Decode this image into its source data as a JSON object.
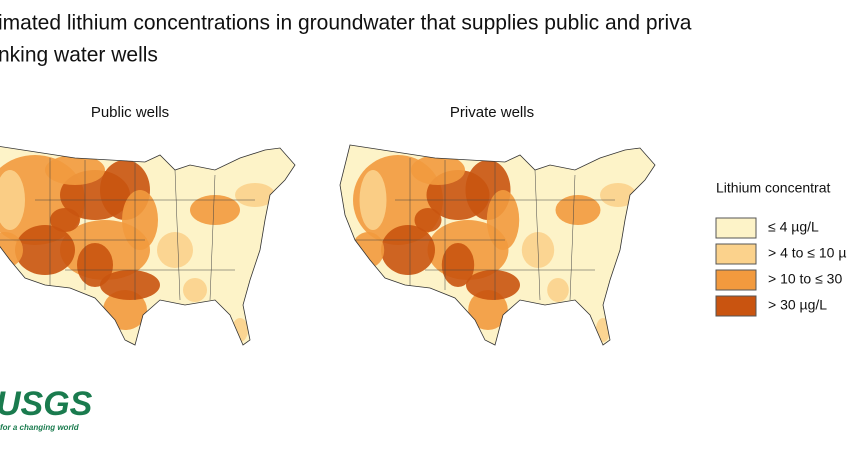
{
  "header": {
    "title_lines": [
      "imated lithium concentrations in groundwater that supplies public and priva",
      "nking water wells"
    ]
  },
  "maps": [
    {
      "label": "Public wells"
    },
    {
      "label": "Private wells"
    }
  ],
  "legend": {
    "title": "Lithium concentrat",
    "items": [
      {
        "label": "≤ 4 µg/L",
        "color": "#fdf3c8"
      },
      {
        "label": "> 4 to ≤ 10 µ",
        "color": "#fbd28c"
      },
      {
        "label": "> 10 to ≤ 30",
        "color": "#f29a3e"
      },
      {
        "label": "> 30 µg/L",
        "color": "#c95410"
      }
    ]
  },
  "logo": {
    "text": "USGS",
    "tagline": "for a changing world"
  }
}
